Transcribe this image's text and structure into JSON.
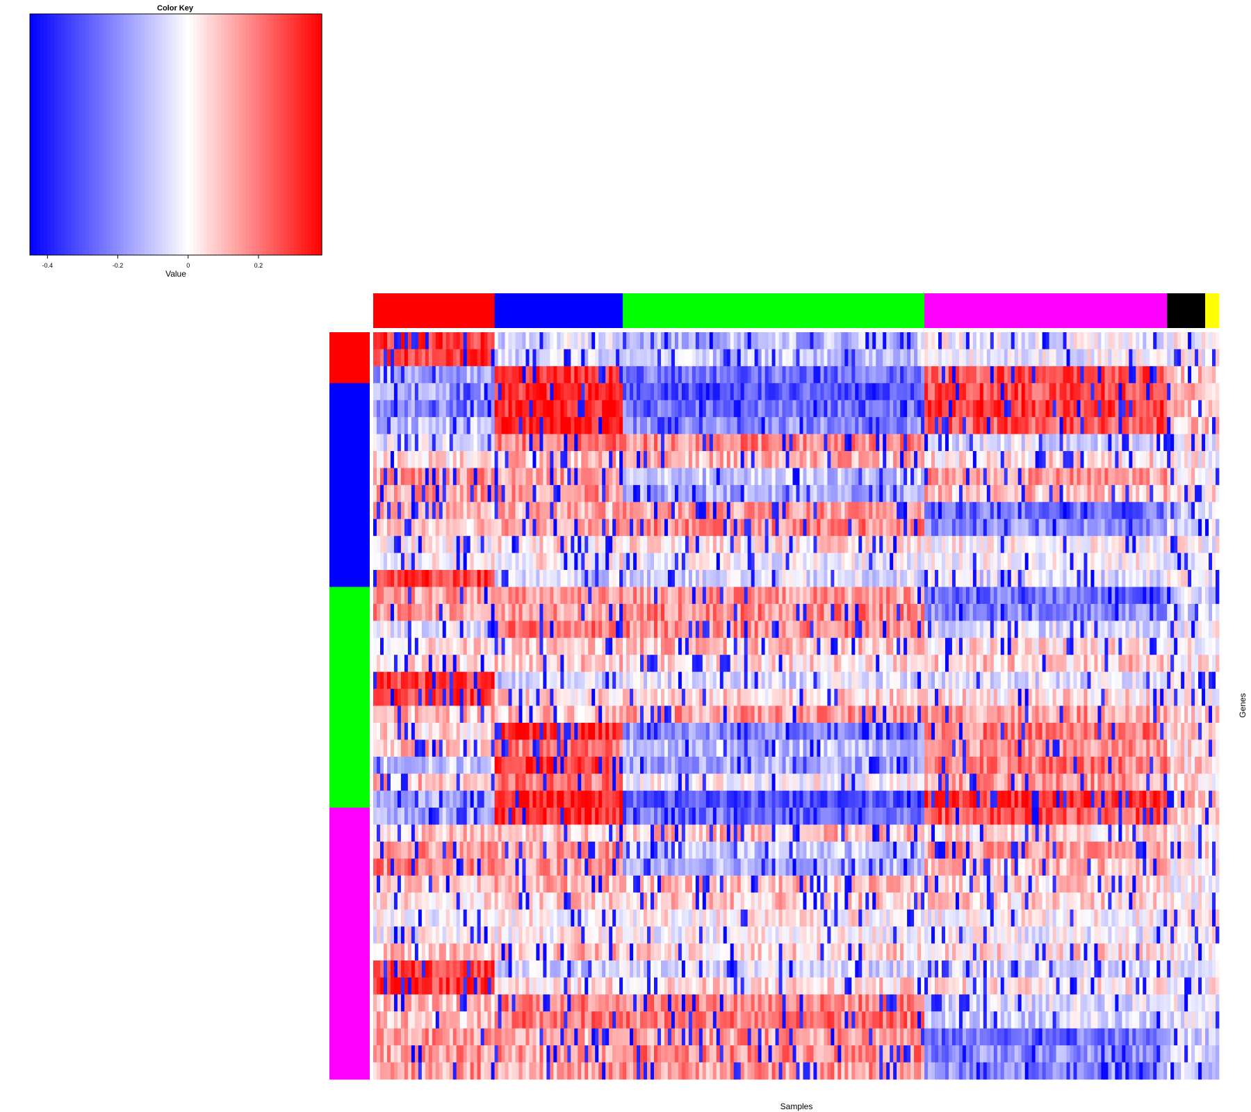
{
  "chart_data": [
    {
      "type": "heatmap",
      "title": "",
      "xlabel": "Samples",
      "ylabel": "Genes",
      "n_rows": 44,
      "n_cols": 244,
      "value_range": [
        -0.45,
        0.38
      ],
      "colormap": [
        "#0000ff",
        "#ffffff",
        "#ff0000"
      ],
      "column_groups": [
        {
          "color": "#ff0000",
          "count": 35
        },
        {
          "color": "#0000ff",
          "count": 37
        },
        {
          "color": "#00ff00",
          "count": 87
        },
        {
          "color": "#ff00ff",
          "count": 70
        },
        {
          "color": "#000000",
          "count": 11
        },
        {
          "color": "#ffff00",
          "count": 4
        }
      ],
      "row_groups": [
        {
          "color": "#ff0000",
          "count": 3
        },
        {
          "color": "#0000ff",
          "count": 12
        },
        {
          "color": "#00ff00",
          "count": 13
        },
        {
          "color": "#ff00ff",
          "count": 16
        }
      ],
      "row_patterns": [
        [
          0.3,
          -0.05,
          -0.12,
          -0.02
        ],
        [
          0.3,
          -0.05,
          -0.1,
          -0.02
        ],
        [
          -0.15,
          0.32,
          -0.25,
          0.25
        ],
        [
          -0.15,
          0.32,
          -0.3,
          0.28
        ],
        [
          -0.2,
          0.33,
          -0.25,
          0.3
        ],
        [
          -0.1,
          0.35,
          -0.2,
          0.25
        ],
        [
          -0.05,
          0.2,
          0.18,
          -0.05
        ],
        [
          0.05,
          0.1,
          0.12,
          0.05
        ],
        [
          0.15,
          0.15,
          -0.1,
          0.15
        ],
        [
          0.15,
          0.15,
          -0.15,
          0.1
        ],
        [
          0.1,
          0.12,
          0.15,
          -0.25
        ],
        [
          0.1,
          0.15,
          0.18,
          -0.2
        ],
        [
          0.02,
          0.05,
          0.04,
          0.02
        ],
        [
          0.0,
          0.02,
          -0.02,
          0.0
        ],
        [
          0.3,
          -0.08,
          -0.06,
          -0.05
        ],
        [
          0.15,
          0.14,
          0.15,
          -0.25
        ],
        [
          0.15,
          0.14,
          0.18,
          -0.2
        ],
        [
          -0.05,
          0.2,
          0.18,
          -0.05
        ],
        [
          0.05,
          0.08,
          0.1,
          0.05
        ],
        [
          0.05,
          0.08,
          0.05,
          0.08
        ],
        [
          0.3,
          -0.08,
          -0.06,
          -0.05
        ],
        [
          0.3,
          0.05,
          0.06,
          0.05
        ],
        [
          0.1,
          0.1,
          0.15,
          0.15
        ],
        [
          0.05,
          0.33,
          -0.2,
          0.2
        ],
        [
          0.1,
          0.2,
          -0.1,
          0.15
        ],
        [
          -0.1,
          0.32,
          -0.15,
          0.2
        ],
        [
          0.1,
          0.2,
          0.0,
          0.15
        ],
        [
          -0.15,
          0.35,
          -0.3,
          0.3
        ],
        [
          -0.15,
          0.33,
          -0.25,
          0.25
        ],
        [
          0.08,
          0.08,
          0.1,
          0.05
        ],
        [
          0.15,
          0.15,
          -0.1,
          0.15
        ],
        [
          0.18,
          0.15,
          -0.12,
          0.1
        ],
        [
          0.05,
          0.12,
          0.1,
          0.05
        ],
        [
          0.05,
          0.08,
          0.08,
          0.06
        ],
        [
          0.0,
          0.02,
          0.02,
          0.0
        ],
        [
          0.0,
          0.02,
          0.0,
          -0.02
        ],
        [
          0.08,
          0.1,
          0.06,
          0.05
        ],
        [
          0.3,
          -0.08,
          -0.06,
          -0.05
        ],
        [
          0.3,
          0.05,
          0.05,
          0.04
        ],
        [
          0.1,
          0.2,
          0.18,
          -0.05
        ],
        [
          0.1,
          0.2,
          0.2,
          -0.08
        ],
        [
          0.15,
          0.12,
          0.15,
          -0.25
        ],
        [
          0.15,
          0.15,
          0.18,
          -0.2
        ],
        [
          0.15,
          0.14,
          0.15,
          -0.2
        ]
      ]
    },
    {
      "type": "heatmap",
      "title": "Color Key",
      "xlabel": "Value",
      "ylabel": "",
      "xlim": [
        -0.45,
        0.38
      ],
      "ticks": [
        -0.4,
        -0.2,
        0,
        0.2
      ],
      "tick_labels": [
        "-0.4",
        "-0.2",
        "0",
        "0.2"
      ],
      "colormap": [
        "#0000ff",
        "#ffffff",
        "#ff0000"
      ]
    }
  ]
}
